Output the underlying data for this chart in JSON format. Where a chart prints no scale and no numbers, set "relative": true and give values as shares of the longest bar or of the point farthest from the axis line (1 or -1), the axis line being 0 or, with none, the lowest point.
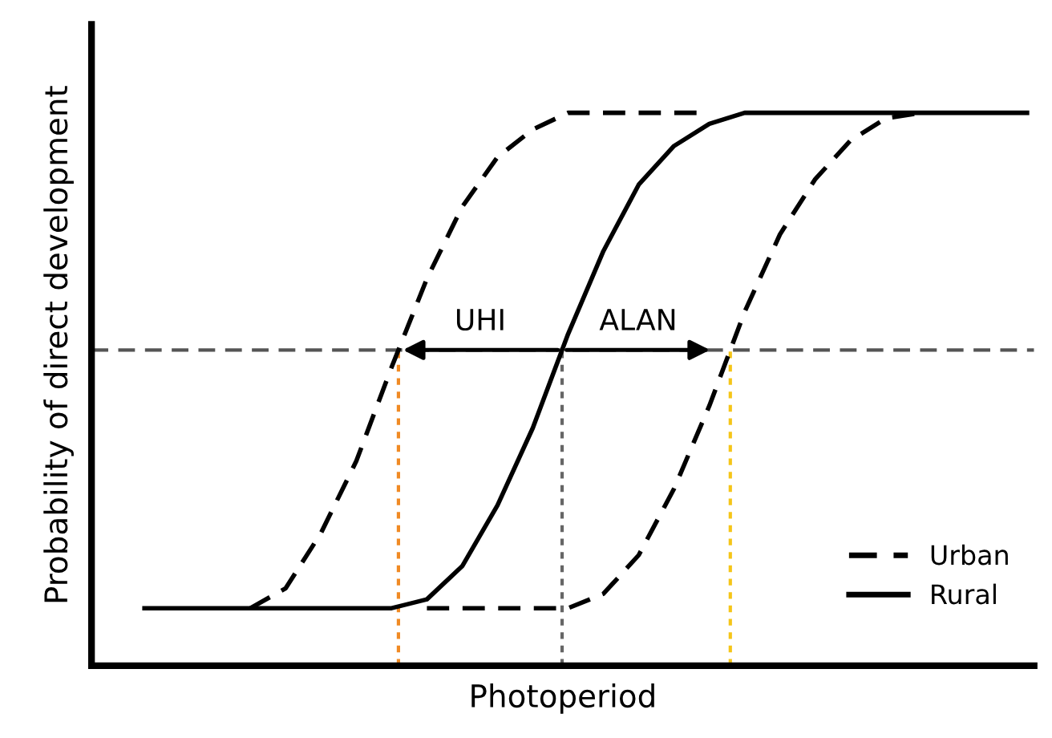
{
  "chart_data": {
    "type": "line",
    "relative": true,
    "xlabel": "Photoperiod",
    "ylabel": "Probability of direct development",
    "legend": "bottom right",
    "marker": "none",
    "categories": [
      null,
      null,
      null,
      null,
      null,
      null,
      null,
      null,
      null,
      null,
      null,
      null,
      null,
      null,
      null,
      null,
      null,
      null,
      null,
      null,
      null,
      null,
      null,
      null,
      null,
      null
    ],
    "series": [
      {
        "name": "Urban",
        "color": "#000000",
        "line_style": "dashed",
        "values": [
          null,
          null,
          null,
          0.104,
          0.14,
          0.24,
          0.37,
          0.54,
          0.7,
          0.83,
          0.92,
          0.97,
          1,
          1,
          1,
          1,
          1,
          null,
          null,
          null,
          null,
          null,
          null,
          null,
          null,
          null
        ]
      },
      {
        "color": "#000000",
        "line_style": "dashed",
        "values": [
          null,
          null,
          null,
          null,
          null,
          null,
          null,
          null,
          0.104,
          0.104,
          0.104,
          0.104,
          0.104,
          0.13,
          0.2,
          0.32,
          0.47,
          0.64,
          0.78,
          0.88,
          0.95,
          0.99,
          1,
          null,
          null,
          null
        ]
      },
      {
        "name": "Rural",
        "color": "#000000",
        "line_style": "solid",
        "values": [
          0.104,
          0.104,
          0.104,
          0.104,
          0.104,
          0.104,
          0.104,
          0.104,
          0.12,
          0.18,
          0.29,
          0.43,
          0.6,
          0.75,
          0.87,
          0.94,
          0.98,
          1,
          1,
          1,
          1,
          1,
          1,
          1,
          1,
          1
        ]
      }
    ],
    "ref_lines": [
      {
        "axis": "y",
        "value": 0.571,
        "color": "#555555",
        "line_style": "dashed"
      }
    ],
    "annotations": [
      "UHI",
      "ALAN"
    ]
  }
}
